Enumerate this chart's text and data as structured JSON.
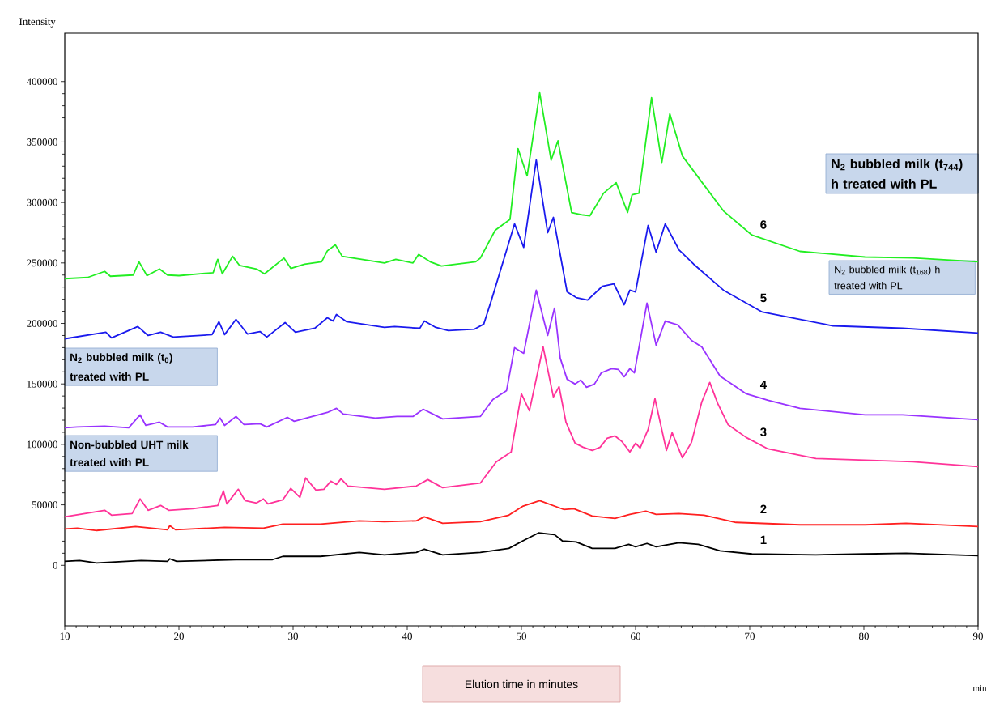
{
  "chart_data": {
    "type": "line",
    "ylabel": "Intensity",
    "xlabel": "Elution time in minutes",
    "xlim": [
      10,
      90
    ],
    "xticks": [
      10,
      20,
      30,
      40,
      50,
      60,
      70,
      80,
      90
    ],
    "ylim": [
      -50000,
      440000
    ],
    "yticks": [
      0,
      50000,
      100000,
      150000,
      200000,
      250000,
      300000,
      350000,
      400000
    ],
    "annotations": [
      "N$_{2}$ bubbled milk (t$_{744}$) h treated with PL",
      "N$_{2}$ bubbled milk (t$_{168}$) h treated with PL",
      "N$_{2}$ bubbled milk (t$_{0}$) treated with PL",
      "Non-bubbled UHT milk treated with PL",
      "min"
    ],
    "series": [
      {
        "name": "6",
        "color": "#22ee22",
        "x": [
          10,
          12,
          13.5,
          14,
          16,
          16.5,
          17.2,
          18.3,
          19,
          20,
          23,
          23.4,
          23.8,
          24.7,
          25.3,
          26.8,
          27.5,
          29.2,
          29.8,
          31,
          32.5,
          33,
          33.7,
          34.3,
          36,
          38,
          39,
          40.5,
          41,
          42,
          43,
          46,
          46.4,
          47.7,
          49,
          49.7,
          50.5,
          51.6,
          52.6,
          53.2,
          54.4,
          55.4,
          56,
          57.2,
          58.3,
          59.3,
          59.7,
          60.3,
          61.4,
          62.3,
          63,
          64.1,
          66,
          67.7,
          70.2,
          74.4,
          80.1,
          84.3,
          90
        ],
        "values": [
          237000,
          238000,
          243000,
          239000,
          240000,
          251000,
          239500,
          245000,
          240000,
          239500,
          242000,
          253000,
          241000,
          255500,
          248000,
          245000,
          241000,
          254000,
          245500,
          249000,
          251000,
          260000,
          265000,
          255500,
          253000,
          250000,
          253000,
          250000,
          257000,
          251000,
          247500,
          251000,
          254000,
          277000,
          286000,
          344500,
          322000,
          390700,
          335000,
          351000,
          291700,
          289700,
          289000,
          307700,
          316400,
          291700,
          306400,
          307700,
          386700,
          333200,
          373300,
          338500,
          314400,
          293000,
          273000,
          259600,
          254900,
          254200,
          251000
        ]
      },
      {
        "name": "5",
        "color": "#1a1aee",
        "x": [
          10,
          13.6,
          14.1,
          16.4,
          17.3,
          18.4,
          19.5,
          22.9,
          23.5,
          24,
          25,
          26,
          27.1,
          27.7,
          29.3,
          30.2,
          31.9,
          33,
          33.5,
          33.8,
          34.7,
          38,
          38.9,
          41.1,
          41.5,
          42.5,
          43.6,
          45.9,
          46.7,
          47.4,
          49.4,
          50.2,
          51.3,
          52.3,
          52.8,
          54,
          54.8,
          55.8,
          57.1,
          58.1,
          59,
          59.5,
          60,
          61.1,
          61.8,
          62.6,
          63.8,
          65.1,
          67.7,
          71.1,
          77.3,
          83.4,
          90
        ],
        "values": [
          187300,
          192700,
          188000,
          197400,
          190000,
          192700,
          188700,
          190700,
          201400,
          190700,
          203400,
          191300,
          193300,
          188700,
          200700,
          192700,
          196000,
          204700,
          202000,
          207400,
          201400,
          196700,
          197400,
          196000,
          202000,
          196700,
          194000,
          195300,
          199400,
          220000,
          282300,
          262900,
          335200,
          275000,
          287700,
          226100,
          221400,
          219400,
          230800,
          232800,
          215400,
          227500,
          226100,
          281000,
          258900,
          282300,
          260900,
          248900,
          227500,
          209400,
          198000,
          196000,
          192000
        ]
      },
      {
        "name": "4",
        "color": "#9933ff",
        "x": [
          10,
          11.1,
          13.5,
          15.6,
          16.6,
          17.1,
          18.3,
          19,
          21.2,
          23.2,
          23.6,
          24,
          25,
          25.7,
          27.1,
          27.7,
          29.5,
          30.1,
          33,
          33.8,
          34.4,
          37.2,
          39.1,
          40.5,
          41.4,
          43.1,
          46.4,
          47.5,
          48.7,
          49.4,
          50.2,
          51.3,
          52.3,
          52.9,
          53.4,
          54,
          54.7,
          55.2,
          55.7,
          56.4,
          57,
          57.9,
          58.5,
          59,
          59.5,
          59.9,
          61,
          61.8,
          62.6,
          63.7,
          64.9,
          65.8,
          67.4,
          69.7,
          71.6,
          74.4,
          80.1,
          83.4,
          90
        ],
        "values": [
          113700,
          114400,
          115100,
          113700,
          124400,
          115700,
          118400,
          114400,
          114400,
          116400,
          121800,
          115700,
          123100,
          116400,
          117100,
          114400,
          122400,
          119100,
          126400,
          129800,
          125100,
          121800,
          123100,
          123100,
          129100,
          121100,
          123100,
          137100,
          144500,
          180000,
          175300,
          227500,
          190000,
          212700,
          171300,
          153900,
          149900,
          153200,
          147200,
          149900,
          159200,
          162600,
          161900,
          155900,
          162600,
          159200,
          216800,
          182000,
          202000,
          198700,
          186000,
          180600,
          156500,
          141800,
          136500,
          129800,
          124400,
          124400,
          120400
        ]
      },
      {
        "name": "3",
        "color": "#ff3399",
        "x": [
          10,
          13.5,
          14.1,
          15.9,
          16.6,
          17.3,
          18.4,
          19.1,
          21.2,
          23.4,
          23.9,
          24.2,
          25.2,
          25.8,
          26.8,
          27.4,
          27.8,
          29.1,
          29.8,
          30.6,
          31.1,
          32,
          32.7,
          33.3,
          33.8,
          34.2,
          34.8,
          38,
          40.8,
          41.8,
          43.1,
          46.4,
          47.8,
          49.1,
          50,
          50.7,
          51.9,
          52.8,
          53.3,
          53.9,
          54.7,
          55.4,
          56.2,
          56.9,
          57.5,
          58.2,
          58.8,
          59.5,
          60,
          60.4,
          61.1,
          61.7,
          62.7,
          63.2,
          64.1,
          64.9,
          65.8,
          66.5,
          67.2,
          68.1,
          69.7,
          71.6,
          75.8,
          80.1,
          84.3,
          90
        ],
        "values": [
          40100,
          45500,
          41500,
          42800,
          54900,
          45500,
          49500,
          45500,
          46800,
          49500,
          61500,
          50800,
          62900,
          53500,
          51500,
          54900,
          50800,
          54200,
          63600,
          56200,
          72300,
          62200,
          62900,
          69600,
          66900,
          71600,
          65600,
          62900,
          65600,
          70900,
          64200,
          68000,
          85600,
          93700,
          141800,
          127800,
          180600,
          139200,
          147800,
          118400,
          101000,
          97700,
          95000,
          97700,
          105000,
          107000,
          102400,
          93700,
          101000,
          97000,
          112400,
          137800,
          95000,
          109700,
          89000,
          101700,
          135100,
          151200,
          133800,
          116400,
          105700,
          96300,
          88300,
          87000,
          85600,
          81600
        ]
      },
      {
        "name": "2",
        "color": "#ff2020",
        "x": [
          10,
          11.1,
          12.8,
          16.2,
          19,
          19.2,
          19.7,
          24,
          27.4,
          29.1,
          32.4,
          35.8,
          38,
          40.8,
          41.5,
          43.1,
          46.4,
          48.9,
          50.1,
          51.6,
          53.7,
          54.6,
          56.2,
          58.2,
          59.5,
          60.9,
          61.8,
          63.8,
          66,
          68.8,
          74.4,
          80.1,
          83.7,
          90
        ],
        "values": [
          30100,
          30800,
          28800,
          32100,
          29400,
          32800,
          29400,
          31400,
          30800,
          34100,
          34100,
          36800,
          36100,
          36800,
          40100,
          34800,
          36100,
          41500,
          48800,
          53500,
          46200,
          46800,
          40800,
          38800,
          42100,
          44800,
          42100,
          42800,
          41500,
          35500,
          33500,
          33500,
          34800,
          32100
        ]
      },
      {
        "name": "1",
        "color": "#000000",
        "x": [
          10,
          11.3,
          12.8,
          16.7,
          19,
          19.2,
          19.8,
          25,
          28.2,
          29.1,
          32.4,
          35.8,
          38,
          40.8,
          41.5,
          43.1,
          46.4,
          48.9,
          50.1,
          51.5,
          52.9,
          53.6,
          54.8,
          56.2,
          58.2,
          59.4,
          60,
          61,
          61.8,
          63.8,
          65.5,
          67.4,
          70.2,
          75.8,
          80.1,
          83.7,
          90
        ],
        "values": [
          3300,
          4000,
          2000,
          4000,
          3300,
          5400,
          3300,
          4700,
          4700,
          7400,
          7400,
          10700,
          8700,
          10700,
          13400,
          8700,
          10700,
          14000,
          20100,
          26800,
          25400,
          20100,
          19400,
          14000,
          14000,
          17400,
          15400,
          18100,
          15400,
          18700,
          17400,
          12000,
          9400,
          8700,
          9400,
          10000,
          8000
        ]
      }
    ]
  }
}
